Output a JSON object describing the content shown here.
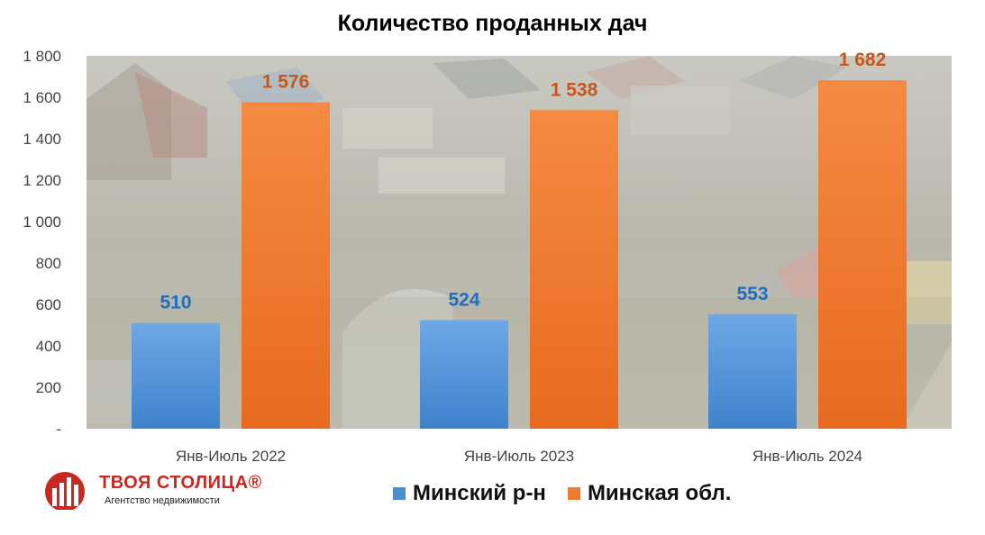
{
  "chart_data": {
    "type": "bar",
    "title": "Количество проданных дач",
    "categories": [
      "Янв-Июль 2022",
      "Янв-Июль 2023",
      "Янв-Июль 2024"
    ],
    "series": [
      {
        "name": "Минский р-н",
        "values": [
          510,
          524,
          553
        ],
        "labels": [
          "510",
          "524",
          "553"
        ],
        "color": "#4a8fd6"
      },
      {
        "name": "Минская обл.",
        "values": [
          1576,
          1538,
          1682
        ],
        "labels": [
          "1 576",
          "1 538",
          "1 682"
        ],
        "color": "#f07a2e"
      }
    ],
    "ylim": [
      0,
      1800
    ],
    "yticks": [
      0,
      200,
      400,
      600,
      800,
      1000,
      1200,
      1400,
      1600,
      1800
    ],
    "ytick_labels": [
      "-",
      "200",
      "400",
      "600",
      "800",
      "1 000",
      "1 200",
      "1 400",
      "1 600",
      "1 800"
    ],
    "grid": false,
    "legend_position": "bottom"
  },
  "logo": {
    "name": "ТВОЯ СТОЛИЦА®",
    "subtitle": "Агентство недвижимости",
    "color": "#c8281f"
  }
}
